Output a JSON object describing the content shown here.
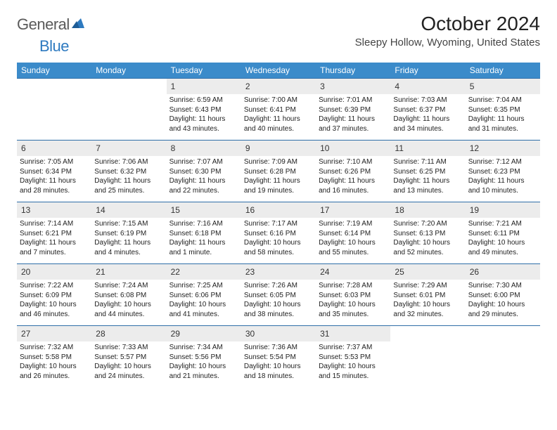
{
  "logo": {
    "part1": "General",
    "part2": "Blue"
  },
  "title": "October 2024",
  "location": "Sleepy Hollow, Wyoming, United States",
  "colors": {
    "header_bg": "#3b8bca",
    "header_text": "#ffffff",
    "daynum_bg": "#ececec",
    "row_border": "#2f6ea8",
    "logo_gray": "#5a5a5a",
    "logo_blue": "#2e7ac0"
  },
  "day_headers": [
    "Sunday",
    "Monday",
    "Tuesday",
    "Wednesday",
    "Thursday",
    "Friday",
    "Saturday"
  ],
  "cells": [
    {
      "n": "",
      "sr": "",
      "ss": "",
      "dl": ""
    },
    {
      "n": "",
      "sr": "",
      "ss": "",
      "dl": ""
    },
    {
      "n": "1",
      "sr": "Sunrise: 6:59 AM",
      "ss": "Sunset: 6:43 PM",
      "dl": "Daylight: 11 hours and 43 minutes."
    },
    {
      "n": "2",
      "sr": "Sunrise: 7:00 AM",
      "ss": "Sunset: 6:41 PM",
      "dl": "Daylight: 11 hours and 40 minutes."
    },
    {
      "n": "3",
      "sr": "Sunrise: 7:01 AM",
      "ss": "Sunset: 6:39 PM",
      "dl": "Daylight: 11 hours and 37 minutes."
    },
    {
      "n": "4",
      "sr": "Sunrise: 7:03 AM",
      "ss": "Sunset: 6:37 PM",
      "dl": "Daylight: 11 hours and 34 minutes."
    },
    {
      "n": "5",
      "sr": "Sunrise: 7:04 AM",
      "ss": "Sunset: 6:35 PM",
      "dl": "Daylight: 11 hours and 31 minutes."
    },
    {
      "n": "6",
      "sr": "Sunrise: 7:05 AM",
      "ss": "Sunset: 6:34 PM",
      "dl": "Daylight: 11 hours and 28 minutes."
    },
    {
      "n": "7",
      "sr": "Sunrise: 7:06 AM",
      "ss": "Sunset: 6:32 PM",
      "dl": "Daylight: 11 hours and 25 minutes."
    },
    {
      "n": "8",
      "sr": "Sunrise: 7:07 AM",
      "ss": "Sunset: 6:30 PM",
      "dl": "Daylight: 11 hours and 22 minutes."
    },
    {
      "n": "9",
      "sr": "Sunrise: 7:09 AM",
      "ss": "Sunset: 6:28 PM",
      "dl": "Daylight: 11 hours and 19 minutes."
    },
    {
      "n": "10",
      "sr": "Sunrise: 7:10 AM",
      "ss": "Sunset: 6:26 PM",
      "dl": "Daylight: 11 hours and 16 minutes."
    },
    {
      "n": "11",
      "sr": "Sunrise: 7:11 AM",
      "ss": "Sunset: 6:25 PM",
      "dl": "Daylight: 11 hours and 13 minutes."
    },
    {
      "n": "12",
      "sr": "Sunrise: 7:12 AM",
      "ss": "Sunset: 6:23 PM",
      "dl": "Daylight: 11 hours and 10 minutes."
    },
    {
      "n": "13",
      "sr": "Sunrise: 7:14 AM",
      "ss": "Sunset: 6:21 PM",
      "dl": "Daylight: 11 hours and 7 minutes."
    },
    {
      "n": "14",
      "sr": "Sunrise: 7:15 AM",
      "ss": "Sunset: 6:19 PM",
      "dl": "Daylight: 11 hours and 4 minutes."
    },
    {
      "n": "15",
      "sr": "Sunrise: 7:16 AM",
      "ss": "Sunset: 6:18 PM",
      "dl": "Daylight: 11 hours and 1 minute."
    },
    {
      "n": "16",
      "sr": "Sunrise: 7:17 AM",
      "ss": "Sunset: 6:16 PM",
      "dl": "Daylight: 10 hours and 58 minutes."
    },
    {
      "n": "17",
      "sr": "Sunrise: 7:19 AM",
      "ss": "Sunset: 6:14 PM",
      "dl": "Daylight: 10 hours and 55 minutes."
    },
    {
      "n": "18",
      "sr": "Sunrise: 7:20 AM",
      "ss": "Sunset: 6:13 PM",
      "dl": "Daylight: 10 hours and 52 minutes."
    },
    {
      "n": "19",
      "sr": "Sunrise: 7:21 AM",
      "ss": "Sunset: 6:11 PM",
      "dl": "Daylight: 10 hours and 49 minutes."
    },
    {
      "n": "20",
      "sr": "Sunrise: 7:22 AM",
      "ss": "Sunset: 6:09 PM",
      "dl": "Daylight: 10 hours and 46 minutes."
    },
    {
      "n": "21",
      "sr": "Sunrise: 7:24 AM",
      "ss": "Sunset: 6:08 PM",
      "dl": "Daylight: 10 hours and 44 minutes."
    },
    {
      "n": "22",
      "sr": "Sunrise: 7:25 AM",
      "ss": "Sunset: 6:06 PM",
      "dl": "Daylight: 10 hours and 41 minutes."
    },
    {
      "n": "23",
      "sr": "Sunrise: 7:26 AM",
      "ss": "Sunset: 6:05 PM",
      "dl": "Daylight: 10 hours and 38 minutes."
    },
    {
      "n": "24",
      "sr": "Sunrise: 7:28 AM",
      "ss": "Sunset: 6:03 PM",
      "dl": "Daylight: 10 hours and 35 minutes."
    },
    {
      "n": "25",
      "sr": "Sunrise: 7:29 AM",
      "ss": "Sunset: 6:01 PM",
      "dl": "Daylight: 10 hours and 32 minutes."
    },
    {
      "n": "26",
      "sr": "Sunrise: 7:30 AM",
      "ss": "Sunset: 6:00 PM",
      "dl": "Daylight: 10 hours and 29 minutes."
    },
    {
      "n": "27",
      "sr": "Sunrise: 7:32 AM",
      "ss": "Sunset: 5:58 PM",
      "dl": "Daylight: 10 hours and 26 minutes."
    },
    {
      "n": "28",
      "sr": "Sunrise: 7:33 AM",
      "ss": "Sunset: 5:57 PM",
      "dl": "Daylight: 10 hours and 24 minutes."
    },
    {
      "n": "29",
      "sr": "Sunrise: 7:34 AM",
      "ss": "Sunset: 5:56 PM",
      "dl": "Daylight: 10 hours and 21 minutes."
    },
    {
      "n": "30",
      "sr": "Sunrise: 7:36 AM",
      "ss": "Sunset: 5:54 PM",
      "dl": "Daylight: 10 hours and 18 minutes."
    },
    {
      "n": "31",
      "sr": "Sunrise: 7:37 AM",
      "ss": "Sunset: 5:53 PM",
      "dl": "Daylight: 10 hours and 15 minutes."
    },
    {
      "n": "",
      "sr": "",
      "ss": "",
      "dl": ""
    },
    {
      "n": "",
      "sr": "",
      "ss": "",
      "dl": ""
    }
  ]
}
